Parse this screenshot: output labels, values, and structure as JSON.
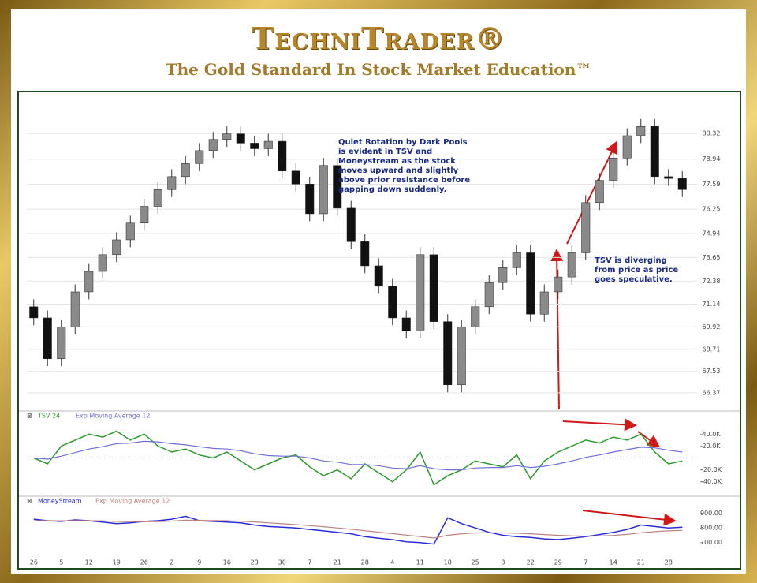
{
  "header": {
    "title": "TechniTrader®",
    "subtitle": "The Gold Standard In Stock Market Education™"
  },
  "chart_data": [
    {
      "type": "candlestick",
      "categories": [
        "26",
        null,
        "5",
        null,
        "12",
        null,
        "19",
        null,
        "26",
        null,
        "2",
        null,
        "9",
        null,
        "16",
        null,
        "23",
        null,
        "30",
        null,
        "7",
        null,
        "21",
        null,
        "28",
        null,
        "4",
        null,
        "11",
        null,
        "18",
        null,
        "25",
        null,
        "8",
        null,
        "22",
        null,
        "29",
        null,
        "7",
        null,
        "14",
        null,
        "21",
        null,
        "28",
        null
      ],
      "open": [
        71.0,
        70.4,
        68.2,
        69.9,
        71.8,
        72.9,
        73.8,
        74.6,
        75.5,
        76.4,
        77.3,
        78.0,
        78.7,
        79.4,
        80.0,
        80.3,
        79.8,
        79.5,
        79.9,
        78.3,
        77.6,
        76.0,
        78.6,
        76.3,
        74.5,
        73.2,
        72.1,
        70.4,
        69.7,
        73.8,
        70.2,
        66.8,
        69.9,
        71.0,
        72.3,
        73.1,
        73.9,
        70.6,
        71.8,
        72.6,
        73.9,
        76.6,
        77.8,
        79.0,
        80.2,
        80.7,
        78.0,
        77.9
      ],
      "high": [
        71.4,
        70.8,
        70.3,
        72.2,
        73.3,
        74.2,
        75.0,
        75.9,
        76.8,
        77.7,
        78.4,
        79.1,
        79.8,
        80.4,
        80.7,
        80.7,
        80.2,
        80.3,
        80.3,
        78.7,
        78.0,
        79.0,
        79.0,
        76.7,
        74.9,
        73.6,
        72.5,
        70.8,
        74.2,
        74.2,
        70.6,
        70.3,
        71.4,
        72.7,
        73.5,
        74.3,
        74.3,
        72.2,
        73.0,
        74.3,
        77.0,
        78.2,
        79.4,
        80.6,
        81.1,
        81.1,
        78.4,
        78.3
      ],
      "low": [
        70.0,
        67.8,
        67.8,
        69.5,
        71.4,
        72.5,
        73.4,
        74.2,
        75.1,
        76.0,
        76.9,
        77.6,
        78.3,
        79.0,
        79.6,
        79.4,
        79.1,
        79.1,
        77.9,
        77.2,
        75.6,
        75.6,
        75.9,
        74.1,
        72.8,
        71.7,
        70.0,
        69.3,
        69.3,
        69.8,
        66.4,
        66.4,
        69.5,
        70.6,
        71.9,
        72.7,
        70.2,
        70.2,
        71.4,
        72.2,
        73.5,
        76.2,
        77.4,
        78.6,
        79.8,
        77.6,
        77.5,
        76.9
      ],
      "close": [
        70.4,
        68.2,
        69.9,
        71.8,
        72.9,
        73.8,
        74.6,
        75.5,
        76.4,
        77.3,
        78.0,
        78.7,
        79.4,
        80.0,
        80.3,
        79.8,
        79.5,
        79.9,
        78.3,
        77.6,
        76.0,
        78.6,
        76.3,
        74.5,
        73.2,
        72.1,
        70.4,
        69.7,
        73.8,
        70.2,
        66.8,
        69.9,
        71.0,
        72.3,
        73.1,
        73.9,
        70.6,
        71.8,
        72.6,
        73.9,
        76.6,
        77.8,
        79.0,
        80.2,
        80.7,
        78.0,
        77.9,
        77.3
      ],
      "up_color": "#8a8a8a",
      "down_color": "#111111",
      "ylim": [
        65.9,
        81.6
      ],
      "yticks": [
        {
          "value": 66.37,
          "label": "66.37"
        },
        {
          "value": 67.53,
          "label": "67.53"
        },
        {
          "value": 68.71,
          "label": "68.71"
        },
        {
          "value": 69.92,
          "label": "69.92"
        },
        {
          "value": 71.14,
          "label": "71.14"
        },
        {
          "value": 72.38,
          "label": "72.38"
        },
        {
          "value": 73.65,
          "label": "73.65"
        },
        {
          "value": 74.94,
          "label": "74.94"
        },
        {
          "value": 76.25,
          "label": "76.25"
        },
        {
          "value": 77.59,
          "label": "77.59"
        },
        {
          "value": 78.94,
          "label": "78.94"
        },
        {
          "value": 80.32,
          "label": "80.32"
        }
      ],
      "grid": true,
      "annotations": [
        "Quiet Rotation by Dark Pools is evident in TSV and Moneystream as the stock moves upward and slightly above prior resistance before gapping down suddenly.",
        "TSV is diverging from price as price goes speculative."
      ]
    },
    {
      "type": "line",
      "series": [
        {
          "name": "TSV 24",
          "color": "#2e9a2e",
          "values": [
            0,
            -10000,
            20000,
            30000,
            40000,
            35000,
            45000,
            30000,
            40000,
            20000,
            10000,
            15000,
            5000,
            0,
            10000,
            -5000,
            -20000,
            -10000,
            0,
            5000,
            -15000,
            -30000,
            -20000,
            -35000,
            -10000,
            -25000,
            -40000,
            -20000,
            10000,
            -45000,
            -30000,
            -20000,
            -5000,
            -10000,
            -15000,
            5000,
            -35000,
            -5000,
            10000,
            20000,
            30000,
            25000,
            35000,
            30000,
            40000,
            10000,
            -10000,
            -5000
          ]
        },
        {
          "name": "Exp Moving Average 12",
          "color": "#7070d8",
          "values": [
            0,
            -2000,
            3000,
            9000,
            15000,
            19000,
            24000,
            25000,
            28000,
            27000,
            24000,
            22000,
            19000,
            16000,
            15000,
            12000,
            7000,
            4000,
            3000,
            3000,
            0,
            -5000,
            -7000,
            -11000,
            -11000,
            -13000,
            -17000,
            -18000,
            -13000,
            -18000,
            -20000,
            -20000,
            -17000,
            -16000,
            -16000,
            -13000,
            -16000,
            -14000,
            -10000,
            -5000,
            1000,
            5000,
            10000,
            14000,
            18000,
            17000,
            13000,
            10000
          ]
        }
      ],
      "ylim": [
        -55000,
        55000
      ],
      "yticks": [
        {
          "value": -40000,
          "label": "-40.0K"
        },
        {
          "value": -20000,
          "label": "-20.0K"
        },
        {
          "value": 20000,
          "label": "20.0K"
        },
        {
          "value": 40000,
          "label": "40.0K"
        }
      ]
    },
    {
      "type": "line",
      "series": [
        {
          "name": "MoneyStream",
          "color": "#2b2bd8",
          "values": [
            860,
            850,
            845,
            855,
            850,
            840,
            830,
            835,
            845,
            850,
            860,
            880,
            850,
            845,
            840,
            835,
            820,
            810,
            805,
            800,
            790,
            780,
            770,
            760,
            740,
            730,
            720,
            705,
            700,
            690,
            870,
            830,
            800,
            770,
            750,
            740,
            735,
            725,
            720,
            730,
            740,
            755,
            770,
            790,
            820,
            810,
            800,
            805
          ]
        },
        {
          "name": "Exp Moving Average 12",
          "color": "#c08080",
          "values": [
            850,
            850,
            849,
            850,
            850,
            848,
            845,
            843,
            843,
            844,
            847,
            853,
            852,
            851,
            849,
            846,
            841,
            835,
            829,
            823,
            816,
            808,
            800,
            791,
            781,
            771,
            761,
            751,
            741,
            731,
            750,
            760,
            766,
            767,
            766,
            764,
            760,
            755,
            750,
            746,
            744,
            745,
            749,
            756,
            767,
            775,
            780,
            784
          ]
        }
      ],
      "ylim": [
        650,
        920
      ],
      "yticks": [
        {
          "value": 700,
          "label": "700.00"
        },
        {
          "value": 800,
          "label": "800.00"
        },
        {
          "value": 900,
          "label": "900.00"
        }
      ]
    }
  ]
}
